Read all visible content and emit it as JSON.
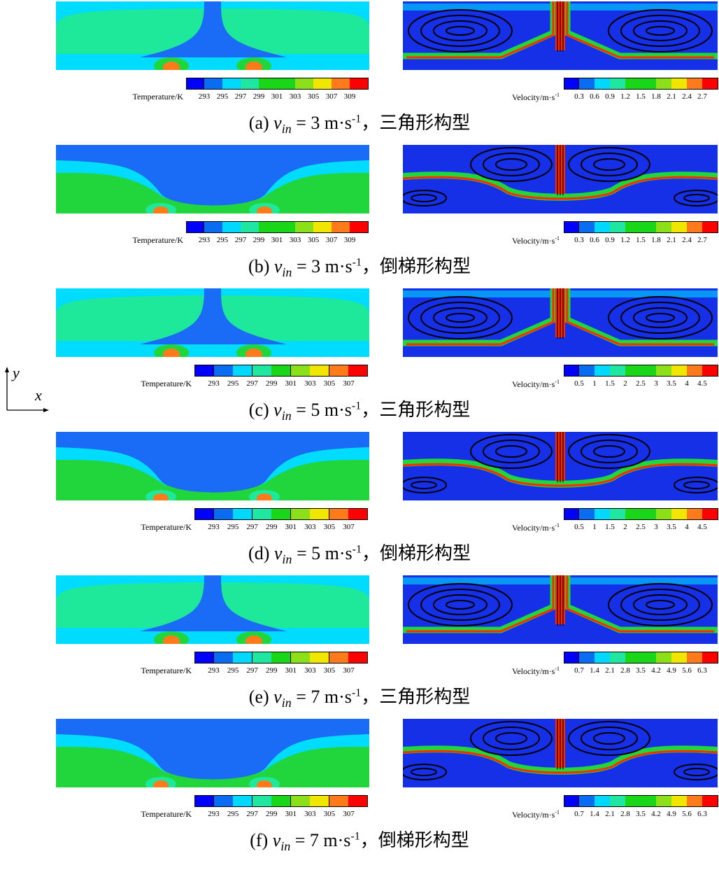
{
  "colors": {
    "scale": [
      "#0000ff",
      "#0a6cf0",
      "#00d9ff",
      "#1fe6a0",
      "#19d619",
      "#8be019",
      "#f0e600",
      "#ff7a1a",
      "#ff0000"
    ],
    "bg_blue": "#1530e6",
    "t_cold": "#1a6bf5",
    "t_mid": "#00dcff",
    "t_warm": "#1ee89a",
    "t_green": "#21d63c",
    "t_hot": "#ff7a1a",
    "v_fast": "#ff2a00",
    "streamline": "#000000"
  },
  "axes_labels": {
    "y": "y",
    "x": "x"
  },
  "panels": [
    {
      "caption": {
        "prefix": "(a)",
        "v": "v",
        "sub": "in",
        "eq": "= 3 m·s",
        "sup": "-1",
        "tail": "，三角形构型"
      },
      "shape": "triangle",
      "temp_bar": {
        "label": "Temperature/K",
        "ticks": [
          "293",
          "295",
          "297",
          "299",
          "301",
          "303",
          "305",
          "307",
          "309"
        ]
      },
      "vel_bar": {
        "label": "Velocity/m·s",
        "sup": "-1",
        "ticks": [
          "0.3",
          "0.6",
          "0.9",
          "1.2",
          "1.5",
          "1.8",
          "2.1",
          "2.4",
          "2.7"
        ]
      }
    },
    {
      "caption": {
        "prefix": "(b)",
        "v": "v",
        "sub": "in",
        "eq": "= 3 m·s",
        "sup": "-1",
        "tail": "，倒梯形构型"
      },
      "shape": "trapezoid",
      "temp_bar": {
        "label": "Temperature/K",
        "ticks": [
          "293",
          "295",
          "297",
          "299",
          "301",
          "303",
          "305",
          "307",
          "309"
        ]
      },
      "vel_bar": {
        "label": "Velocity/m·s",
        "sup": "-1",
        "ticks": [
          "0.3",
          "0.6",
          "0.9",
          "1.2",
          "1.5",
          "1.8",
          "2.1",
          "2.4",
          "2.7"
        ]
      }
    },
    {
      "caption": {
        "prefix": "(c)",
        "v": "v",
        "sub": "in",
        "eq": "= 5 m·s",
        "sup": "-1",
        "tail": "，三角形构型"
      },
      "shape": "triangle",
      "temp_bar": {
        "label": "Temperature/K",
        "ticks": [
          "293",
          "295",
          "297",
          "299",
          "301",
          "303",
          "305",
          "307"
        ]
      },
      "vel_bar": {
        "label": "Velocity/m·s",
        "sup": "-1",
        "ticks": [
          "0.5",
          "1",
          "1.5",
          "2",
          "2.5",
          "3",
          "3.5",
          "4",
          "4.5"
        ]
      }
    },
    {
      "caption": {
        "prefix": "(d)",
        "v": "v",
        "sub": "in",
        "eq": "= 5 m·s",
        "sup": "-1",
        "tail": "，倒梯形构型"
      },
      "shape": "trapezoid",
      "temp_bar": {
        "label": "Temperature/K",
        "ticks": [
          "293",
          "295",
          "297",
          "299",
          "301",
          "303",
          "305",
          "307"
        ]
      },
      "vel_bar": {
        "label": "Velocity/m·s",
        "sup": "-1",
        "ticks": [
          "0.5",
          "1",
          "1.5",
          "2",
          "2.5",
          "3",
          "3.5",
          "4",
          "4.5"
        ]
      }
    },
    {
      "caption": {
        "prefix": "(e)",
        "v": "v",
        "sub": "in",
        "eq": "= 7 m·s",
        "sup": "-1",
        "tail": "，三角形构型"
      },
      "shape": "triangle",
      "temp_bar": {
        "label": "Temperature/K",
        "ticks": [
          "293",
          "295",
          "297",
          "299",
          "301",
          "303",
          "305",
          "307"
        ]
      },
      "vel_bar": {
        "label": "Velocity/m·s",
        "sup": "-1",
        "ticks": [
          "0.7",
          "1.4",
          "2.1",
          "2.8",
          "3.5",
          "4.2",
          "4.9",
          "5.6",
          "6.3"
        ]
      }
    },
    {
      "caption": {
        "prefix": "(f)",
        "v": "v",
        "sub": "in",
        "eq": "= 7 m·s",
        "sup": "-1",
        "tail": "，倒梯形构型"
      },
      "shape": "trapezoid",
      "temp_bar": {
        "label": "Temperature/K",
        "ticks": [
          "293",
          "295",
          "297",
          "299",
          "301",
          "303",
          "305",
          "307"
        ]
      },
      "vel_bar": {
        "label": "Velocity/m·s",
        "sup": "-1",
        "ticks": [
          "0.7",
          "1.4",
          "2.1",
          "2.8",
          "3.5",
          "4.2",
          "4.9",
          "5.6",
          "6.3"
        ]
      }
    }
  ]
}
